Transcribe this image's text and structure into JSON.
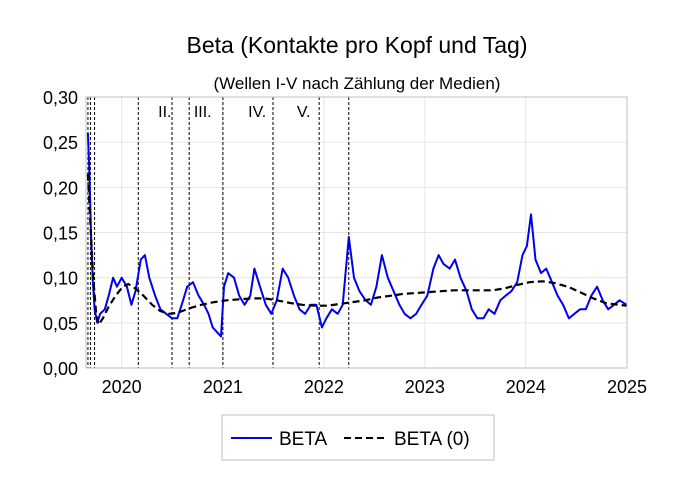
{
  "chart_data": {
    "type": "line",
    "title": "Beta (Kontakte pro Kopf und Tag)",
    "subtitle": "(Wellen I-V nach Zählung der Medien)",
    "xlabel": "",
    "ylabel": "",
    "xlim": [
      "2019-08-25",
      "2025-01-01"
    ],
    "ylim": [
      0,
      0.3
    ],
    "y_ticks": [
      "0,00",
      "0,05",
      "0,10",
      "0,15",
      "0,20",
      "0,25",
      "0,30"
    ],
    "x_ticks": [
      "2020",
      "2021",
      "2022",
      "2023",
      "2024",
      "2025"
    ],
    "grid": true,
    "legend_position": "bottom",
    "wave_labels": [
      {
        "label": "II.",
        "date": "2020-06-05"
      },
      {
        "label": "III.",
        "date": "2020-10-20"
      },
      {
        "label": "IV.",
        "date": "2021-05-05"
      },
      {
        "label": "V.",
        "date": "2021-10-20"
      }
    ],
    "wave_boundaries": [
      "2019-09-01",
      "2019-09-10",
      "2019-09-25",
      "2020-03-01",
      "2020-07-01",
      "2020-09-01",
      "2021-01-01",
      "2021-07-01",
      "2021-12-15",
      "2022-04-01"
    ],
    "series": [
      {
        "name": "BETA",
        "color": "#0000ee",
        "style": "solid",
        "points": [
          [
            "2019-09-01",
            0.26
          ],
          [
            "2019-09-06",
            0.22
          ],
          [
            "2019-09-12",
            0.15
          ],
          [
            "2019-09-18",
            0.1
          ],
          [
            "2019-09-25",
            0.065
          ],
          [
            "2019-10-05",
            0.05
          ],
          [
            "2019-10-15",
            0.06
          ],
          [
            "2019-11-01",
            0.065
          ],
          [
            "2019-11-15",
            0.08
          ],
          [
            "2019-12-01",
            0.1
          ],
          [
            "2019-12-15",
            0.09
          ],
          [
            "2020-01-01",
            0.1
          ],
          [
            "2020-01-20",
            0.09
          ],
          [
            "2020-02-05",
            0.07
          ],
          [
            "2020-02-20",
            0.085
          ],
          [
            "2020-03-10",
            0.12
          ],
          [
            "2020-03-25",
            0.125
          ],
          [
            "2020-04-10",
            0.1
          ],
          [
            "2020-05-01",
            0.08
          ],
          [
            "2020-05-20",
            0.065
          ],
          [
            "2020-06-10",
            0.06
          ],
          [
            "2020-07-01",
            0.055
          ],
          [
            "2020-07-20",
            0.055
          ],
          [
            "2020-08-05",
            0.07
          ],
          [
            "2020-08-25",
            0.09
          ],
          [
            "2020-09-15",
            0.095
          ],
          [
            "2020-10-05",
            0.08
          ],
          [
            "2020-10-25",
            0.07
          ],
          [
            "2020-11-10",
            0.06
          ],
          [
            "2020-11-25",
            0.045
          ],
          [
            "2020-12-10",
            0.04
          ],
          [
            "2020-12-25",
            0.035
          ],
          [
            "2021-01-05",
            0.09
          ],
          [
            "2021-01-20",
            0.105
          ],
          [
            "2021-02-10",
            0.1
          ],
          [
            "2021-03-01",
            0.08
          ],
          [
            "2021-03-20",
            0.07
          ],
          [
            "2021-04-10",
            0.08
          ],
          [
            "2021-04-25",
            0.11
          ],
          [
            "2021-05-15",
            0.09
          ],
          [
            "2021-06-05",
            0.07
          ],
          [
            "2021-06-25",
            0.06
          ],
          [
            "2021-07-15",
            0.075
          ],
          [
            "2021-08-05",
            0.11
          ],
          [
            "2021-08-25",
            0.1
          ],
          [
            "2021-09-15",
            0.08
          ],
          [
            "2021-10-05",
            0.065
          ],
          [
            "2021-10-25",
            0.06
          ],
          [
            "2021-11-15",
            0.07
          ],
          [
            "2021-12-05",
            0.07
          ],
          [
            "2021-12-25",
            0.045
          ],
          [
            "2022-01-10",
            0.055
          ],
          [
            "2022-01-30",
            0.065
          ],
          [
            "2022-02-20",
            0.06
          ],
          [
            "2022-03-10",
            0.07
          ],
          [
            "2022-04-01",
            0.145
          ],
          [
            "2022-04-20",
            0.1
          ],
          [
            "2022-05-10",
            0.085
          ],
          [
            "2022-06-01",
            0.075
          ],
          [
            "2022-06-20",
            0.07
          ],
          [
            "2022-07-10",
            0.09
          ],
          [
            "2022-07-30",
            0.125
          ],
          [
            "2022-08-20",
            0.1
          ],
          [
            "2022-09-10",
            0.085
          ],
          [
            "2022-10-01",
            0.07
          ],
          [
            "2022-10-20",
            0.06
          ],
          [
            "2022-11-10",
            0.055
          ],
          [
            "2022-12-01",
            0.06
          ],
          [
            "2022-12-20",
            0.07
          ],
          [
            "2023-01-10",
            0.08
          ],
          [
            "2023-02-01",
            0.11
          ],
          [
            "2023-02-20",
            0.125
          ],
          [
            "2023-03-10",
            0.115
          ],
          [
            "2023-04-01",
            0.11
          ],
          [
            "2023-04-20",
            0.12
          ],
          [
            "2023-05-10",
            0.1
          ],
          [
            "2023-06-01",
            0.085
          ],
          [
            "2023-06-20",
            0.065
          ],
          [
            "2023-07-10",
            0.055
          ],
          [
            "2023-08-01",
            0.055
          ],
          [
            "2023-08-20",
            0.065
          ],
          [
            "2023-09-10",
            0.06
          ],
          [
            "2023-10-01",
            0.075
          ],
          [
            "2023-10-20",
            0.08
          ],
          [
            "2023-11-10",
            0.085
          ],
          [
            "2023-12-01",
            0.095
          ],
          [
            "2023-12-20",
            0.125
          ],
          [
            "2024-01-05",
            0.135
          ],
          [
            "2024-01-20",
            0.17
          ],
          [
            "2024-02-05",
            0.12
          ],
          [
            "2024-02-25",
            0.105
          ],
          [
            "2024-03-15",
            0.11
          ],
          [
            "2024-04-05",
            0.095
          ],
          [
            "2024-04-25",
            0.08
          ],
          [
            "2024-05-15",
            0.07
          ],
          [
            "2024-06-05",
            0.055
          ],
          [
            "2024-06-25",
            0.06
          ],
          [
            "2024-07-15",
            0.065
          ],
          [
            "2024-08-05",
            0.065
          ],
          [
            "2024-08-25",
            0.08
          ],
          [
            "2024-09-15",
            0.09
          ],
          [
            "2024-10-05",
            0.075
          ],
          [
            "2024-10-25",
            0.065
          ],
          [
            "2024-11-15",
            0.07
          ],
          [
            "2024-12-05",
            0.075
          ],
          [
            "2024-12-31",
            0.07
          ]
        ]
      },
      {
        "name": "BETA (0)",
        "color": "#000000",
        "style": "dashed",
        "points": [
          [
            "2019-09-01",
            0.215
          ],
          [
            "2019-09-10",
            0.16
          ],
          [
            "2019-09-20",
            0.1
          ],
          [
            "2019-10-01",
            0.06
          ],
          [
            "2019-10-10",
            0.048
          ],
          [
            "2019-10-25",
            0.055
          ],
          [
            "2019-11-15",
            0.068
          ],
          [
            "2019-12-10",
            0.08
          ],
          [
            "2020-01-05",
            0.09
          ],
          [
            "2020-01-25",
            0.093
          ],
          [
            "2020-02-20",
            0.088
          ],
          [
            "2020-03-20",
            0.08
          ],
          [
            "2020-04-20",
            0.07
          ],
          [
            "2020-05-20",
            0.063
          ],
          [
            "2020-06-20",
            0.06
          ],
          [
            "2020-07-20",
            0.061
          ],
          [
            "2020-09-01",
            0.066
          ],
          [
            "2020-10-15",
            0.07
          ],
          [
            "2020-12-01",
            0.073
          ],
          [
            "2021-01-15",
            0.075
          ],
          [
            "2021-03-01",
            0.076
          ],
          [
            "2021-04-15",
            0.077
          ],
          [
            "2021-06-01",
            0.077
          ],
          [
            "2021-07-15",
            0.075
          ],
          [
            "2021-09-01",
            0.072
          ],
          [
            "2021-10-15",
            0.07
          ],
          [
            "2021-12-01",
            0.069
          ],
          [
            "2022-01-15",
            0.069
          ],
          [
            "2022-03-01",
            0.071
          ],
          [
            "2022-04-15",
            0.073
          ],
          [
            "2022-06-01",
            0.075
          ],
          [
            "2022-07-15",
            0.078
          ],
          [
            "2022-09-01",
            0.08
          ],
          [
            "2022-10-15",
            0.082
          ],
          [
            "2022-12-01",
            0.083
          ],
          [
            "2023-01-15",
            0.084
          ],
          [
            "2023-03-01",
            0.085
          ],
          [
            "2023-04-15",
            0.086
          ],
          [
            "2023-06-01",
            0.086
          ],
          [
            "2023-07-15",
            0.086
          ],
          [
            "2023-09-01",
            0.086
          ],
          [
            "2023-10-15",
            0.088
          ],
          [
            "2023-12-01",
            0.092
          ],
          [
            "2024-01-15",
            0.095
          ],
          [
            "2024-03-01",
            0.096
          ],
          [
            "2024-04-15",
            0.094
          ],
          [
            "2024-06-01",
            0.09
          ],
          [
            "2024-07-15",
            0.084
          ],
          [
            "2024-09-01",
            0.077
          ],
          [
            "2024-10-15",
            0.072
          ],
          [
            "2024-12-01",
            0.07
          ],
          [
            "2024-12-31",
            0.069
          ]
        ]
      }
    ]
  }
}
